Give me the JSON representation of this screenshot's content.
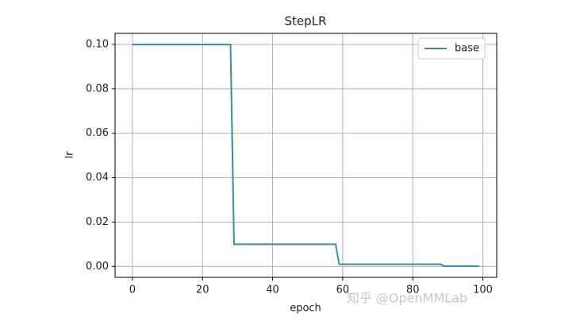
{
  "chart_data": {
    "type": "line",
    "title": "StepLR",
    "xlabel": "epoch",
    "ylabel": "lr",
    "x": [
      0,
      28,
      29,
      58,
      59,
      88,
      89,
      99
    ],
    "series": [
      {
        "name": "base",
        "color": "#3b8ba8",
        "values": [
          0.1,
          0.1,
          0.01,
          0.01,
          0.001,
          0.001,
          0.0001,
          0.0001
        ]
      }
    ],
    "xlim": [
      -4.95,
      103.95
    ],
    "xticks": [
      0,
      20,
      40,
      60,
      80,
      100
    ],
    "ylim": [
      -0.004895,
      0.104995
    ],
    "yticks": [
      {
        "value": 0,
        "label": "0.00"
      },
      {
        "value": 0.02,
        "label": "0.02"
      },
      {
        "value": 0.04,
        "label": "0.04"
      },
      {
        "value": 0.06,
        "label": "0.06"
      },
      {
        "value": 0.08,
        "label": "0.08"
      },
      {
        "value": 0.1,
        "label": "0.10"
      }
    ],
    "grid": true,
    "legend": "upper right",
    "watermark": "知乎 @OpenMMLab"
  }
}
